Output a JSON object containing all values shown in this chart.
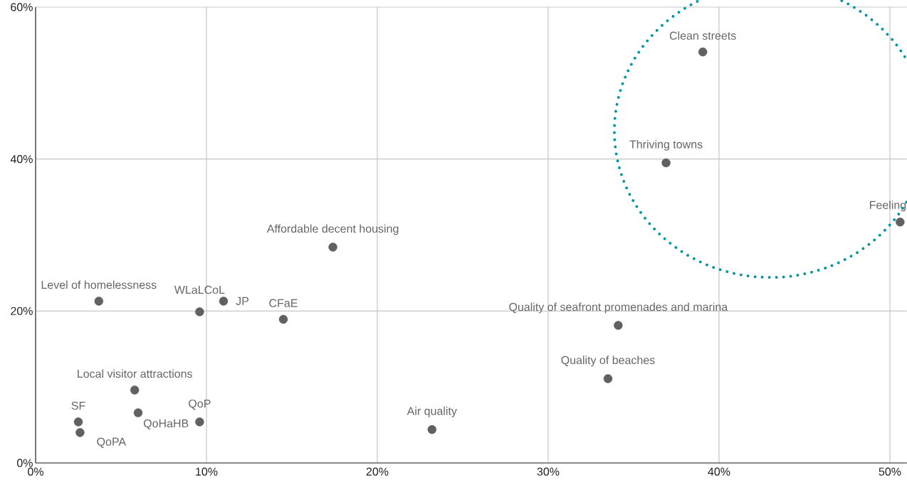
{
  "chart_data": {
    "type": "scatter",
    "x": [
      39.05,
      36.9,
      50.6,
      17.4,
      3.7,
      9.6,
      11.0,
      14.5,
      34.1,
      33.5,
      5.8,
      6.0,
      9.6,
      2.5,
      2.6,
      23.2
    ],
    "values": [
      54.1,
      39.5,
      31.7,
      28.4,
      21.3,
      19.9,
      21.3,
      18.9,
      18.1,
      11.1,
      9.6,
      6.6,
      5.4,
      5.4,
      4.0,
      4.4
    ],
    "color": "#616161",
    "grid": true,
    "xlim": [
      0,
      51
    ],
    "ylim": [
      0,
      60
    ],
    "xticks": [
      {
        "value": 0,
        "label": "0%"
      },
      {
        "value": 10,
        "label": "10%"
      },
      {
        "value": 20,
        "label": "20%"
      },
      {
        "value": 30,
        "label": "30%"
      },
      {
        "value": 40,
        "label": "40%"
      },
      {
        "value": 50,
        "label": "50%"
      }
    ],
    "yticks": [
      {
        "value": 0,
        "label": "0%"
      },
      {
        "value": 20,
        "label": "20%"
      },
      {
        "value": 40,
        "label": "40%"
      },
      {
        "value": 60,
        "label": "60%"
      }
    ],
    "annotations": [
      {
        "text": "Clean streets",
        "x": 39.05,
        "y": 54.1
      },
      {
        "text": "Thriving towns",
        "x": 36.9,
        "y": 39.5
      },
      {
        "text": "Feeling",
        "x": 50.6,
        "y": 31.7
      },
      {
        "text": "Affordable decent housing",
        "x": 17.4,
        "y": 28.4
      },
      {
        "text": "Level of homelessness",
        "x": 3.7,
        "y": 21.3
      },
      {
        "text": "WLaLCoL",
        "x": 9.6,
        "y": 19.9
      },
      {
        "text": "JP",
        "x": 11.0,
        "y": 21.3
      },
      {
        "text": "CFaE",
        "x": 14.5,
        "y": 18.9
      },
      {
        "text": "Quality of seafront promenades and marina",
        "x": 34.1,
        "y": 18.1
      },
      {
        "text": "Quality of beaches",
        "x": 33.5,
        "y": 11.1
      },
      {
        "text": "Local visitor attractions",
        "x": 5.8,
        "y": 9.6
      },
      {
        "text": "QoHaHB",
        "x": 6.0,
        "y": 6.6
      },
      {
        "text": "QoP",
        "x": 9.6,
        "y": 5.4
      },
      {
        "text": "SF",
        "x": 2.5,
        "y": 5.4
      },
      {
        "text": "QoPA",
        "x": 2.6,
        "y": 4.0
      },
      {
        "text": "Air quality",
        "x": 23.2,
        "y": 4.4
      }
    ]
  }
}
